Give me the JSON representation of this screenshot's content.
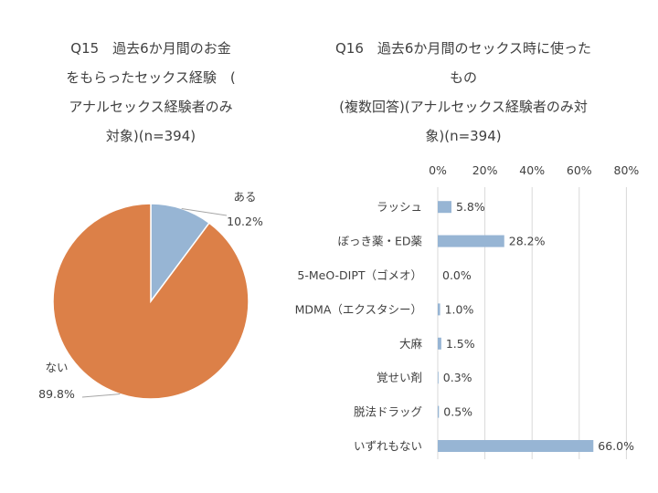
{
  "chart_data": [
    {
      "type": "pie",
      "title_lines": [
        "Q15　過去6か月間のお金",
        "をもらったセックス経験　(",
        "アナルセックス経験者のみ",
        "対象)(n=394)"
      ],
      "categories": [
        "ある",
        "ない"
      ],
      "values": [
        10.2,
        89.8
      ],
      "value_labels": [
        "10.2%",
        "89.8%"
      ],
      "colors": [
        "#97b5d4",
        "#dc8048"
      ],
      "legend": "none"
    },
    {
      "type": "bar",
      "orientation": "horizontal",
      "title_lines": [
        "Q16　過去6か月間のセックス時に使った",
        "もの",
        "(複数回答)(アナルセックス経験者のみ対",
        "象)(n=394)"
      ],
      "categories": [
        "ラッシュ",
        "ぼっき薬・ED薬",
        "5-MeO-DIPT（ゴメオ）",
        "MDMA（エクスタシー）",
        "大麻",
        "覚せい剤",
        "脱法ドラッグ",
        "いずれもない"
      ],
      "values": [
        5.8,
        28.2,
        0.0,
        1.0,
        1.5,
        0.3,
        0.5,
        66.0
      ],
      "value_labels": [
        "5.8%",
        "28.2%",
        "0.0%",
        "1.0%",
        "1.5%",
        "0.3%",
        "0.5%",
        "66.0%"
      ],
      "x_ticks": [
        "0%",
        "20%",
        "40%",
        "60%",
        "80%"
      ],
      "xlim": [
        0,
        80
      ],
      "xaxis_position": "top",
      "grid": true,
      "bar_color": "#97b5d4"
    }
  ]
}
